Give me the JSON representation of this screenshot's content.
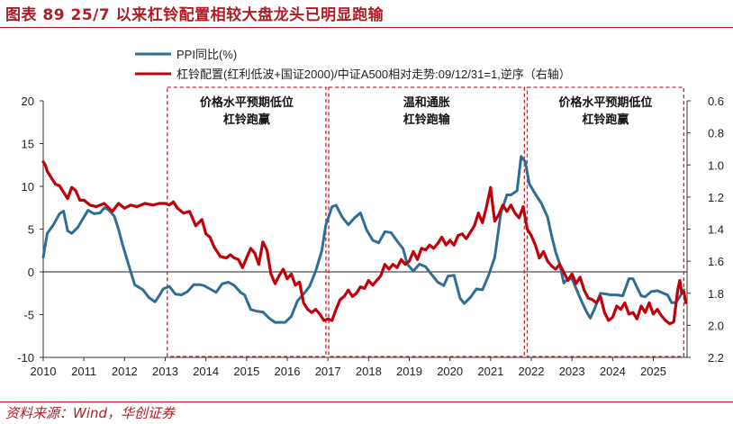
{
  "title": "图表 89    25/7 以来杠铃配置相较大盘龙头已明显跑输",
  "source": "资料来源：Wind，华创证券",
  "colors": {
    "ppi": "#2f6e94",
    "barbell": "#c0000a",
    "box": "#d0202a",
    "title": "#b01c24"
  },
  "chart_data": {
    "type": "line",
    "title": "25/7 以来杠铃配置相较大盘龙头已明显跑输",
    "x_ticks": [
      "2010",
      "2011",
      "2012",
      "2013",
      "2014",
      "2015",
      "2016",
      "2017",
      "2018",
      "2019",
      "2020",
      "2021",
      "2022",
      "2023",
      "2024",
      "2025"
    ],
    "x_range": [
      2010,
      2025.83
    ],
    "y_left": {
      "ticks": [
        "20",
        "15",
        "10",
        "5",
        "0",
        "-5",
        "-10"
      ],
      "range": [
        -10,
        20
      ]
    },
    "y_right": {
      "ticks": [
        "0.6",
        "0.8",
        "1.0",
        "1.2",
        "1.4",
        "1.6",
        "1.8",
        "2.0",
        "2.2"
      ],
      "range": [
        0.6,
        2.2
      ],
      "inverted": true
    },
    "legend_position": "top-left",
    "series": [
      {
        "name": "PPI同比(%)",
        "axis": "left",
        "points": [
          [
            2010.0,
            1.7
          ],
          [
            2010.1,
            4.5
          ],
          [
            2010.25,
            5.5
          ],
          [
            2010.4,
            6.8
          ],
          [
            2010.5,
            7.1
          ],
          [
            2010.6,
            4.8
          ],
          [
            2010.7,
            4.5
          ],
          [
            2010.85,
            5.2
          ],
          [
            2010.95,
            6.0
          ],
          [
            2011.1,
            7.2
          ],
          [
            2011.25,
            6.8
          ],
          [
            2011.4,
            6.9
          ],
          [
            2011.5,
            7.5
          ],
          [
            2011.6,
            7.3
          ],
          [
            2011.75,
            6.5
          ],
          [
            2011.85,
            5.0
          ],
          [
            2011.95,
            3.2
          ],
          [
            2012.1,
            0.8
          ],
          [
            2012.25,
            -1.5
          ],
          [
            2012.45,
            -2.1
          ],
          [
            2012.6,
            -3.0
          ],
          [
            2012.75,
            -3.5
          ],
          [
            2012.85,
            -2.8
          ],
          [
            2012.95,
            -2.0
          ],
          [
            2013.1,
            -1.7
          ],
          [
            2013.25,
            -2.6
          ],
          [
            2013.4,
            -2.7
          ],
          [
            2013.55,
            -2.3
          ],
          [
            2013.7,
            -1.5
          ],
          [
            2013.85,
            -1.5
          ],
          [
            2013.95,
            -1.6
          ],
          [
            2014.1,
            -2.0
          ],
          [
            2014.25,
            -2.4
          ],
          [
            2014.4,
            -1.4
          ],
          [
            2014.55,
            -1.2
          ],
          [
            2014.7,
            -1.6
          ],
          [
            2014.85,
            -2.4
          ],
          [
            2014.95,
            -2.7
          ],
          [
            2015.1,
            -4.4
          ],
          [
            2015.25,
            -4.6
          ],
          [
            2015.4,
            -4.7
          ],
          [
            2015.55,
            -5.4
          ],
          [
            2015.7,
            -5.9
          ],
          [
            2015.85,
            -5.9
          ],
          [
            2015.95,
            -5.9
          ],
          [
            2016.1,
            -5.2
          ],
          [
            2016.25,
            -3.4
          ],
          [
            2016.4,
            -2.6
          ],
          [
            2016.55,
            -1.7
          ],
          [
            2016.7,
            0.1
          ],
          [
            2016.85,
            2.5
          ],
          [
            2016.95,
            5.5
          ],
          [
            2017.1,
            7.6
          ],
          [
            2017.2,
            7.8
          ],
          [
            2017.35,
            6.4
          ],
          [
            2017.5,
            5.5
          ],
          [
            2017.65,
            6.3
          ],
          [
            2017.8,
            6.9
          ],
          [
            2017.95,
            4.9
          ],
          [
            2018.1,
            3.7
          ],
          [
            2018.25,
            3.4
          ],
          [
            2018.4,
            4.7
          ],
          [
            2018.55,
            4.6
          ],
          [
            2018.7,
            3.6
          ],
          [
            2018.85,
            2.7
          ],
          [
            2018.95,
            0.9
          ],
          [
            2019.1,
            0.1
          ],
          [
            2019.25,
            0.9
          ],
          [
            2019.4,
            0.6
          ],
          [
            2019.55,
            -0.3
          ],
          [
            2019.7,
            -1.2
          ],
          [
            2019.85,
            -1.6
          ],
          [
            2019.95,
            -0.5
          ],
          [
            2020.1,
            -0.4
          ],
          [
            2020.25,
            -3.1
          ],
          [
            2020.35,
            -3.7
          ],
          [
            2020.5,
            -3.0
          ],
          [
            2020.65,
            -2.0
          ],
          [
            2020.8,
            -2.1
          ],
          [
            2020.95,
            -0.4
          ],
          [
            2021.1,
            1.7
          ],
          [
            2021.25,
            6.8
          ],
          [
            2021.4,
            9.0
          ],
          [
            2021.5,
            9.0
          ],
          [
            2021.65,
            9.5
          ],
          [
            2021.75,
            13.5
          ],
          [
            2021.85,
            12.9
          ],
          [
            2021.95,
            10.3
          ],
          [
            2022.1,
            9.1
          ],
          [
            2022.25,
            8.0
          ],
          [
            2022.4,
            6.4
          ],
          [
            2022.5,
            4.2
          ],
          [
            2022.6,
            2.3
          ],
          [
            2022.7,
            0.9
          ],
          [
            2022.8,
            -1.3
          ],
          [
            2022.9,
            -0.8
          ],
          [
            2023.0,
            -0.8
          ],
          [
            2023.15,
            -2.5
          ],
          [
            2023.25,
            -3.6
          ],
          [
            2023.35,
            -4.6
          ],
          [
            2023.45,
            -5.4
          ],
          [
            2023.55,
            -4.4
          ],
          [
            2023.7,
            -2.5
          ],
          [
            2023.85,
            -2.6
          ],
          [
            2023.95,
            -2.7
          ],
          [
            2024.1,
            -2.7
          ],
          [
            2024.25,
            -2.8
          ],
          [
            2024.4,
            -0.8
          ],
          [
            2024.5,
            -0.8
          ],
          [
            2024.6,
            -1.8
          ],
          [
            2024.7,
            -2.8
          ],
          [
            2024.8,
            -2.9
          ],
          [
            2024.95,
            -2.3
          ],
          [
            2025.1,
            -2.2
          ],
          [
            2025.25,
            -2.5
          ],
          [
            2025.35,
            -2.7
          ],
          [
            2025.45,
            -3.6
          ],
          [
            2025.55,
            -3.6
          ],
          [
            2025.65,
            -2.9
          ],
          [
            2025.75,
            -2.1
          ]
        ]
      },
      {
        "name": "杠铃配置(红利低波+国证2000)/中证A500相对走势:09/12/31=1,逆序（右轴）",
        "axis": "right",
        "points": [
          [
            2010.0,
            0.98
          ],
          [
            2010.05,
            1.0
          ],
          [
            2010.1,
            1.04
          ],
          [
            2010.2,
            1.08
          ],
          [
            2010.3,
            1.12
          ],
          [
            2010.4,
            1.13
          ],
          [
            2010.5,
            1.17
          ],
          [
            2010.6,
            1.21
          ],
          [
            2010.7,
            1.14
          ],
          [
            2010.8,
            1.16
          ],
          [
            2010.9,
            1.22
          ],
          [
            2011.0,
            1.22
          ],
          [
            2011.15,
            1.25
          ],
          [
            2011.3,
            1.26
          ],
          [
            2011.5,
            1.24
          ],
          [
            2011.7,
            1.29
          ],
          [
            2011.85,
            1.24
          ],
          [
            2012.0,
            1.27
          ],
          [
            2012.15,
            1.25
          ],
          [
            2012.3,
            1.26
          ],
          [
            2012.5,
            1.24
          ],
          [
            2012.7,
            1.25
          ],
          [
            2012.85,
            1.24
          ],
          [
            2013.0,
            1.24
          ],
          [
            2013.1,
            1.25
          ],
          [
            2013.2,
            1.23
          ],
          [
            2013.3,
            1.27
          ],
          [
            2013.45,
            1.3
          ],
          [
            2013.6,
            1.29
          ],
          [
            2013.75,
            1.38
          ],
          [
            2013.9,
            1.34
          ],
          [
            2014.0,
            1.43
          ],
          [
            2014.1,
            1.45
          ],
          [
            2014.2,
            1.51
          ],
          [
            2014.35,
            1.57
          ],
          [
            2014.5,
            1.58
          ],
          [
            2014.6,
            1.56
          ],
          [
            2014.7,
            1.58
          ],
          [
            2014.8,
            1.59
          ],
          [
            2014.9,
            1.64
          ],
          [
            2015.0,
            1.58
          ],
          [
            2015.1,
            1.52
          ],
          [
            2015.2,
            1.55
          ],
          [
            2015.3,
            1.62
          ],
          [
            2015.4,
            1.48
          ],
          [
            2015.5,
            1.53
          ],
          [
            2015.6,
            1.68
          ],
          [
            2015.7,
            1.74
          ],
          [
            2015.8,
            1.69
          ],
          [
            2015.9,
            1.65
          ],
          [
            2016.0,
            1.71
          ],
          [
            2016.1,
            1.68
          ],
          [
            2016.2,
            1.75
          ],
          [
            2016.3,
            1.73
          ],
          [
            2016.4,
            1.86
          ],
          [
            2016.5,
            1.9
          ],
          [
            2016.6,
            1.92
          ],
          [
            2016.7,
            1.9
          ],
          [
            2016.8,
            1.93
          ],
          [
            2016.9,
            1.97
          ],
          [
            2017.0,
            1.96
          ],
          [
            2017.1,
            1.97
          ],
          [
            2017.2,
            1.9
          ],
          [
            2017.3,
            1.84
          ],
          [
            2017.4,
            1.82
          ],
          [
            2017.5,
            1.78
          ],
          [
            2017.6,
            1.82
          ],
          [
            2017.7,
            1.8
          ],
          [
            2017.8,
            1.76
          ],
          [
            2017.9,
            1.77
          ],
          [
            2018.0,
            1.72
          ],
          [
            2018.1,
            1.75
          ],
          [
            2018.2,
            1.72
          ],
          [
            2018.3,
            1.69
          ],
          [
            2018.4,
            1.62
          ],
          [
            2018.5,
            1.65
          ],
          [
            2018.6,
            1.62
          ],
          [
            2018.7,
            1.64
          ],
          [
            2018.8,
            1.59
          ],
          [
            2018.9,
            1.62
          ],
          [
            2019.0,
            1.6
          ],
          [
            2019.1,
            1.54
          ],
          [
            2019.2,
            1.59
          ],
          [
            2019.3,
            1.52
          ],
          [
            2019.4,
            1.53
          ],
          [
            2019.5,
            1.5
          ],
          [
            2019.6,
            1.52
          ],
          [
            2019.7,
            1.49
          ],
          [
            2019.8,
            1.45
          ],
          [
            2019.9,
            1.5
          ],
          [
            2020.0,
            1.47
          ],
          [
            2020.1,
            1.5
          ],
          [
            2020.2,
            1.44
          ],
          [
            2020.3,
            1.43
          ],
          [
            2020.4,
            1.46
          ],
          [
            2020.5,
            1.42
          ],
          [
            2020.6,
            1.38
          ],
          [
            2020.7,
            1.3
          ],
          [
            2020.8,
            1.36
          ],
          [
            2020.9,
            1.26
          ],
          [
            2021.0,
            1.14
          ],
          [
            2021.05,
            1.25
          ],
          [
            2021.1,
            1.35
          ],
          [
            2021.2,
            1.31
          ],
          [
            2021.3,
            1.25
          ],
          [
            2021.4,
            1.29
          ],
          [
            2021.5,
            1.25
          ],
          [
            2021.6,
            1.3
          ],
          [
            2021.7,
            1.33
          ],
          [
            2021.8,
            1.26
          ],
          [
            2021.9,
            1.4
          ],
          [
            2022.0,
            1.44
          ],
          [
            2022.1,
            1.5
          ],
          [
            2022.2,
            1.58
          ],
          [
            2022.3,
            1.54
          ],
          [
            2022.4,
            1.6
          ],
          [
            2022.5,
            1.63
          ],
          [
            2022.6,
            1.65
          ],
          [
            2022.7,
            1.62
          ],
          [
            2022.8,
            1.67
          ],
          [
            2022.9,
            1.72
          ],
          [
            2023.0,
            1.68
          ],
          [
            2023.1,
            1.74
          ],
          [
            2023.2,
            1.7
          ],
          [
            2023.3,
            1.78
          ],
          [
            2023.4,
            1.83
          ],
          [
            2023.5,
            1.84
          ],
          [
            2023.6,
            1.86
          ],
          [
            2023.7,
            1.82
          ],
          [
            2023.8,
            1.92
          ],
          [
            2023.9,
            1.97
          ],
          [
            2024.0,
            1.95
          ],
          [
            2024.1,
            1.88
          ],
          [
            2024.2,
            1.9
          ],
          [
            2024.3,
            1.86
          ],
          [
            2024.4,
            1.93
          ],
          [
            2024.5,
            1.92
          ],
          [
            2024.6,
            1.96
          ],
          [
            2024.7,
            1.88
          ],
          [
            2024.8,
            1.92
          ],
          [
            2024.9,
            1.86
          ],
          [
            2025.0,
            1.93
          ],
          [
            2025.1,
            1.9
          ],
          [
            2025.2,
            1.94
          ],
          [
            2025.3,
            1.97
          ],
          [
            2025.4,
            1.99
          ],
          [
            2025.5,
            1.98
          ],
          [
            2025.55,
            1.88
          ],
          [
            2025.6,
            1.78
          ],
          [
            2025.65,
            1.72
          ],
          [
            2025.7,
            1.8
          ],
          [
            2025.75,
            1.79
          ],
          [
            2025.8,
            1.86
          ]
        ]
      }
    ],
    "annotations": [
      {
        "x_start": 2013.05,
        "x_end": 2016.95,
        "lines": [
          "价格水平预期低位",
          "杠铃跑赢"
        ]
      },
      {
        "x_start": 2017.02,
        "x_end": 2021.83,
        "lines": [
          "温和通胀",
          "杠铃跑输"
        ]
      },
      {
        "x_start": 2021.9,
        "x_end": 2025.75,
        "lines": [
          "价格水平预期低位",
          "杠铃跑赢"
        ]
      }
    ]
  }
}
